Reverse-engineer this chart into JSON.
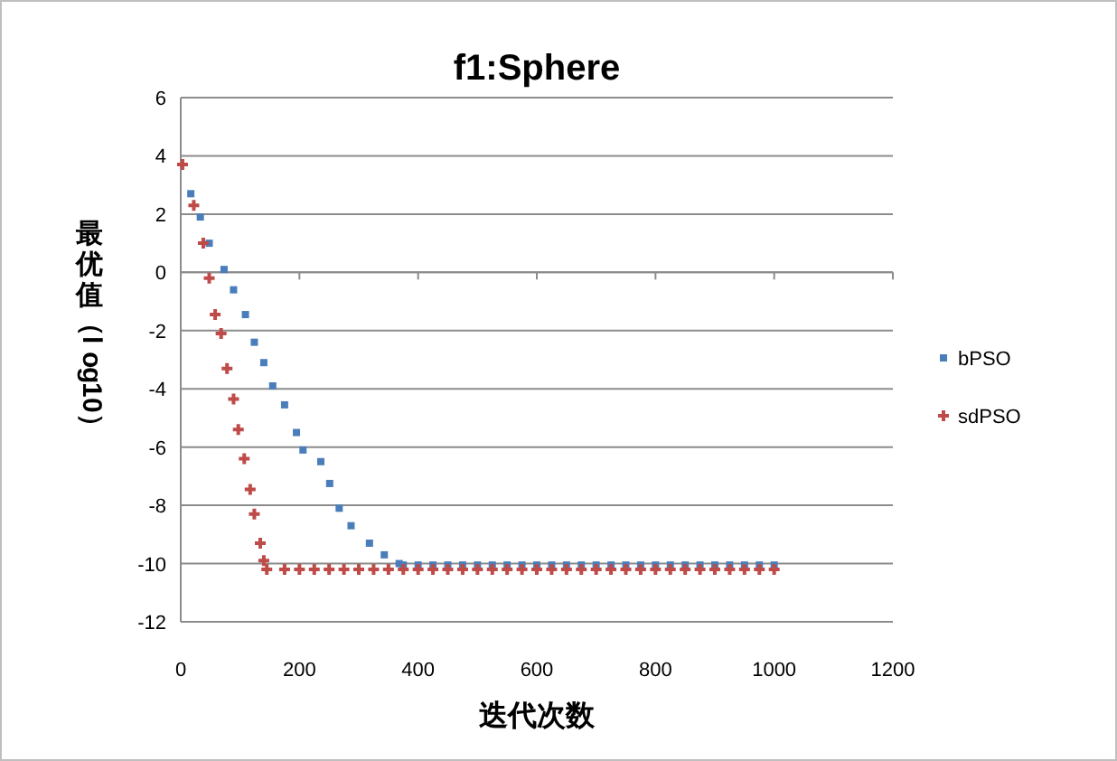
{
  "chart_data": {
    "type": "scatter",
    "title": "f1:Sphere",
    "xlabel": "迭代次数",
    "ylabel": "最优值（log10）",
    "xlim": [
      0,
      1200
    ],
    "xticks": [
      0,
      200,
      400,
      600,
      800,
      1000,
      1200
    ],
    "ylim": [
      -12,
      6
    ],
    "yticks": [
      -12,
      -10,
      -8,
      -6,
      -4,
      -2,
      0,
      2,
      4,
      6
    ],
    "grid": "y",
    "legend": "right",
    "series": [
      {
        "name": "bPSO",
        "color": "#4a7ebb",
        "marker": "square",
        "x": [
          17,
          33,
          48,
          73,
          89,
          109,
          124,
          140,
          155,
          175,
          195,
          206,
          236,
          251,
          267,
          287,
          318,
          343,
          368,
          375,
          400,
          425,
          450,
          475,
          500,
          525,
          550,
          575,
          600,
          625,
          650,
          675,
          700,
          725,
          750,
          775,
          800,
          825,
          850,
          875,
          900,
          925,
          950,
          975,
          1000
        ],
        "values": [
          2.7,
          1.9,
          1.0,
          0.1,
          -0.6,
          -1.45,
          -2.4,
          -3.1,
          -3.9,
          -4.55,
          -5.5,
          -6.1,
          -6.5,
          -7.25,
          -8.1,
          -8.7,
          -9.3,
          -9.7,
          -10.0,
          -10.05,
          -10.05,
          -10.05,
          -10.05,
          -10.05,
          -10.05,
          -10.05,
          -10.05,
          -10.05,
          -10.05,
          -10.05,
          -10.05,
          -10.05,
          -10.05,
          -10.05,
          -10.05,
          -10.05,
          -10.05,
          -10.05,
          -10.05,
          -10.05,
          -10.05,
          -10.05,
          -10.05,
          -10.05,
          -10.05
        ]
      },
      {
        "name": "sdPSO",
        "color": "#be4b48",
        "marker": "cross",
        "x": [
          3,
          22,
          38,
          48,
          58,
          68,
          78,
          89,
          97,
          107,
          117,
          124,
          134,
          140,
          145,
          175,
          200,
          225,
          250,
          275,
          300,
          325,
          350,
          375,
          400,
          425,
          450,
          475,
          500,
          525,
          550,
          575,
          600,
          625,
          650,
          675,
          700,
          725,
          750,
          775,
          800,
          825,
          850,
          875,
          900,
          925,
          950,
          975,
          1000
        ],
        "values": [
          3.7,
          2.3,
          1.0,
          -0.2,
          -1.45,
          -2.1,
          -3.3,
          -4.35,
          -5.4,
          -6.4,
          -7.45,
          -8.3,
          -9.3,
          -9.9,
          -10.2,
          -10.2,
          -10.2,
          -10.2,
          -10.2,
          -10.2,
          -10.2,
          -10.2,
          -10.2,
          -10.2,
          -10.2,
          -10.2,
          -10.2,
          -10.2,
          -10.2,
          -10.2,
          -10.2,
          -10.2,
          -10.2,
          -10.2,
          -10.2,
          -10.2,
          -10.2,
          -10.2,
          -10.2,
          -10.2,
          -10.2,
          -10.2,
          -10.2,
          -10.2,
          -10.2,
          -10.2,
          -10.2,
          -10.2,
          -10.2
        ]
      }
    ]
  }
}
